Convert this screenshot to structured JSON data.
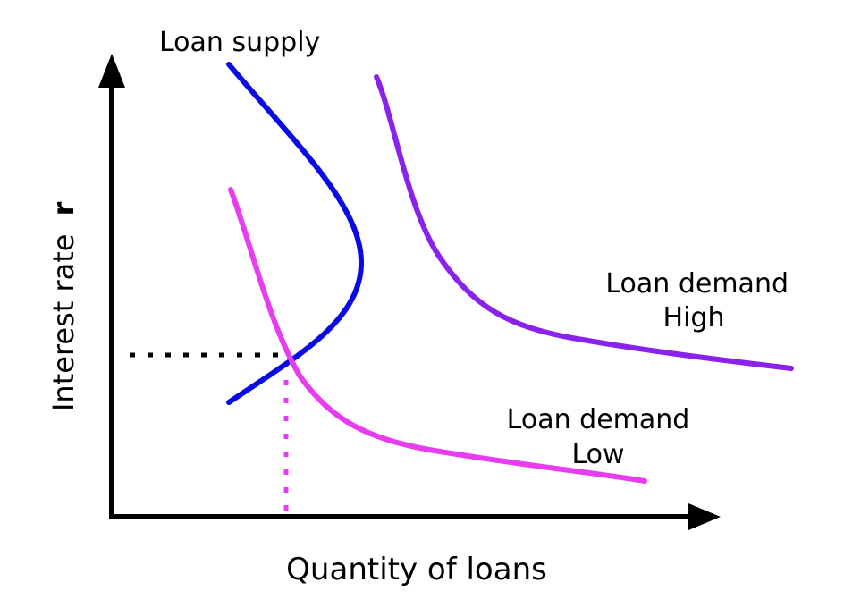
{
  "axes": {
    "x_label": "Quantity of loans",
    "y_label": "Interest rate",
    "y_symbol": "r"
  },
  "curves": {
    "supply": {
      "label": "Loan supply",
      "color": "#0a0ae6"
    },
    "demand_high": {
      "label_line1": "Loan demand",
      "label_line2": "High",
      "color": "#8a22ee"
    },
    "demand_low": {
      "label_line1": "Loan demand",
      "label_line2": "Low",
      "color": "#e83cf0"
    }
  },
  "equilibrium_guides": {
    "horizontal_color": "#000000",
    "vertical_color": "#e83cf0",
    "style": "dotted"
  },
  "colors": {
    "axis": "#000000",
    "background": "#ffffff"
  }
}
